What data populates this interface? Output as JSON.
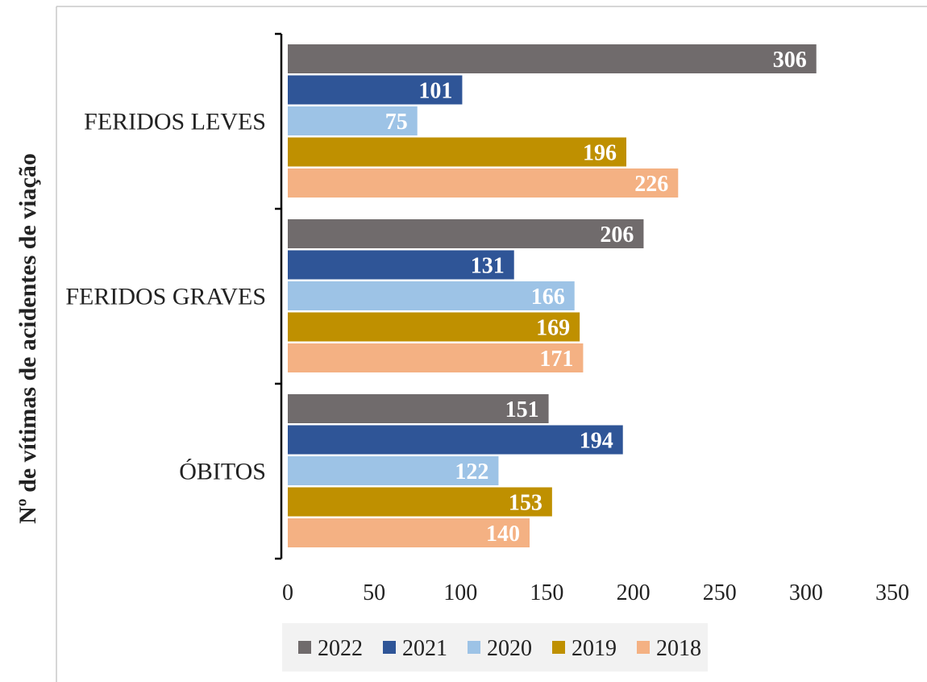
{
  "chart_data": {
    "type": "bar",
    "orientation": "horizontal",
    "title": "",
    "xlabel": "",
    "ylabel": "Nº de vítimas de acidentes de viação",
    "categories": [
      "FERIDOS LEVES",
      "FERIDOS GRAVES",
      "ÓBITOS"
    ],
    "series": [
      {
        "name": "2022",
        "color": "#706b6c",
        "values": [
          306,
          206,
          151
        ]
      },
      {
        "name": "2021",
        "color": "#2f5597",
        "values": [
          101,
          131,
          194
        ]
      },
      {
        "name": "2020",
        "color": "#9dc3e6",
        "values": [
          75,
          166,
          122
        ]
      },
      {
        "name": "2019",
        "color": "#bf9000",
        "values": [
          196,
          169,
          153
        ]
      },
      {
        "name": "2018",
        "color": "#f4b183",
        "values": [
          226,
          171,
          140
        ]
      }
    ],
    "xlim": [
      0,
      350
    ],
    "xticks": [
      "0",
      "50",
      "100",
      "150",
      "200",
      "250",
      "300",
      "350"
    ],
    "grid": false,
    "legend_position": "bottom",
    "legend_background": "#f2f2f2"
  }
}
